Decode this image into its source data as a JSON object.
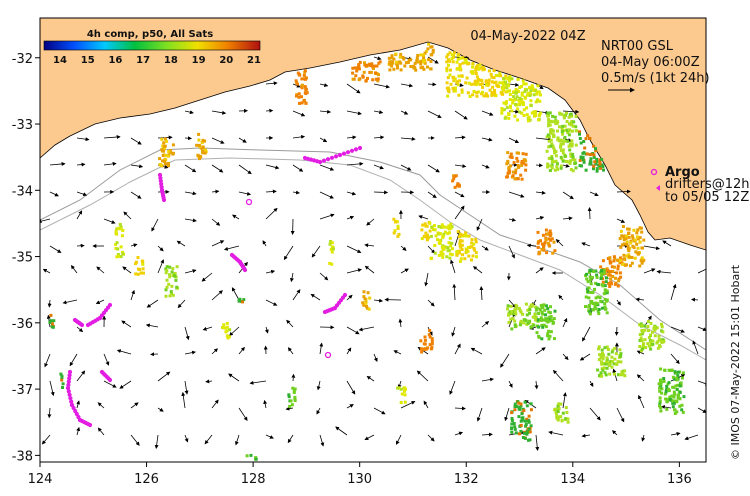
{
  "map": {
    "date_label": "04-May-2022 04Z",
    "model_label": "NRT00 GSL",
    "model_time": "04-May 06:00Z",
    "scale_label": "0.5m/s (1kt 24h)",
    "credit": "© IMOS 07-May-2022 15:01 Hobart",
    "x_ticks": [
      "124",
      "126",
      "128",
      "130",
      "132",
      "134",
      "136"
    ],
    "y_ticks": [
      "-32",
      "-33",
      "-34",
      "-35",
      "-36",
      "-37",
      "-38"
    ],
    "x_values": [
      124,
      126,
      128,
      130,
      132,
      134,
      136
    ],
    "y_values": [
      -32,
      -33,
      -34,
      -35,
      -36,
      -37,
      -38
    ],
    "lon_range": [
      124,
      136.5
    ],
    "lat_range": [
      -38.1,
      -31.4
    ],
    "colors": {
      "land": "#fcc98e",
      "ocean": "#ffffff",
      "argo": "#e31ee3",
      "drifter": "#e31ee3",
      "isobath": "#9a9a9a"
    }
  },
  "colorbar": {
    "title": "4h comp, p50, All Sats",
    "labels": [
      "14",
      "15",
      "16",
      "17",
      "18",
      "19",
      "20",
      "21"
    ],
    "values": [
      14,
      15,
      16,
      17,
      18,
      19,
      20,
      21
    ]
  },
  "legend": {
    "argo_label": "Argo",
    "drifters_label": "drifters@12h",
    "drifters_to": "to 05/05 12Z"
  }
}
